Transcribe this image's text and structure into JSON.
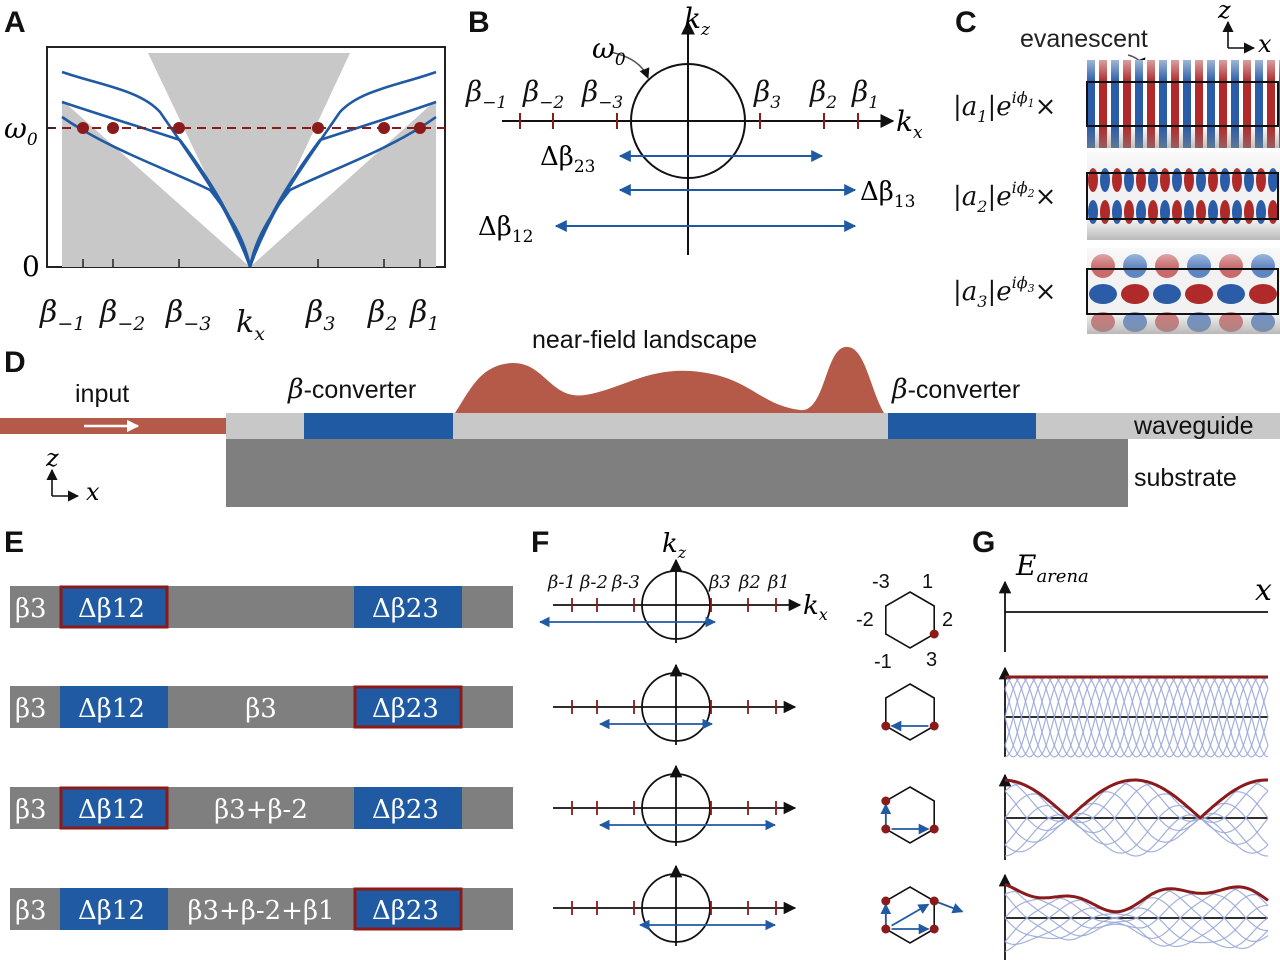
{
  "panels": {
    "a": "A",
    "b": "B",
    "c": "C",
    "d": "D",
    "e": "E",
    "f": "F",
    "g": "G"
  },
  "colors": {
    "blue": "#1f5aa3",
    "red": "#8b1a1a",
    "copper": "#b55a48",
    "grey": "#c8c8c8",
    "dark": "#7f7f7f",
    "wave": "#9aa9d8"
  },
  "panel_a": {
    "y_ticks": [
      "ω",
      "0",
      "0"
    ],
    "x_ticks": [
      {
        "base": "β",
        "sub": "−1"
      },
      {
        "base": "β",
        "sub": "−2"
      },
      {
        "base": "β",
        "sub": "−3"
      },
      {
        "base": "k",
        "sub": "x"
      },
      {
        "base": "β",
        "sub": "3"
      },
      {
        "base": "β",
        "sub": "2"
      },
      {
        "base": "β",
        "sub": "1"
      }
    ]
  },
  "panel_b": {
    "omega": "ω",
    "omega_sub": "0",
    "kz": "k",
    "kz_sub": "z",
    "kx": "k",
    "kx_sub": "x",
    "left_labels": [
      {
        "base": "β",
        "sub": "−1"
      },
      {
        "base": "β",
        "sub": "−2"
      },
      {
        "base": "β",
        "sub": "−3"
      }
    ],
    "right_labels": [
      {
        "base": "β",
        "sub": "3"
      },
      {
        "base": "β",
        "sub": "2"
      },
      {
        "base": "β",
        "sub": "1"
      }
    ],
    "arrows": [
      {
        "base": "Δβ",
        "sub": "23"
      },
      {
        "base": "Δβ",
        "sub": "13"
      },
      {
        "base": "Δβ",
        "sub": "12"
      }
    ]
  },
  "panel_c": {
    "evanescent": "evanescent",
    "z": "z",
    "x": "x",
    "modes": [
      {
        "mag": "|a",
        "i": "1",
        "mid": "|e",
        "ph": "iϕ",
        "phs": "1",
        "times": "×"
      },
      {
        "mag": "|a",
        "i": "2",
        "mid": "|e",
        "ph": "iϕ",
        "phs": "2",
        "times": "×"
      },
      {
        "mag": "|a",
        "i": "3",
        "mid": "|e",
        "ph": "iϕ",
        "phs": "3",
        "times": "×"
      }
    ]
  },
  "panel_d": {
    "input": "input",
    "near_field": "near-field landscape",
    "beta": "β",
    "converter": "-converter",
    "waveguide": "waveguide",
    "substrate": "substrate",
    "z": "z",
    "x": "x"
  },
  "panel_e": {
    "rows": [
      {
        "a": "β3",
        "b": "Δβ12",
        "c": "",
        "d": "Δβ23"
      },
      {
        "a": "β3",
        "b": "Δβ12",
        "c": "β3",
        "d": "Δβ23"
      },
      {
        "a": "β3",
        "b": "Δβ12",
        "c": "β3+β-2",
        "d": "Δβ23"
      },
      {
        "a": "β3",
        "b": "Δβ12",
        "c": "β3+β-2+β1",
        "d": "Δβ23"
      }
    ]
  },
  "panel_f": {
    "kz": "k",
    "kz_sub": "z",
    "kx": "k",
    "kx_sub": "x",
    "left_labels": [
      "β-1",
      "β-2",
      "β-3"
    ],
    "right_labels": [
      "β3",
      "β2",
      "β1"
    ],
    "hex_labels": [
      "-3",
      "1",
      "-2",
      "2",
      "-1",
      "3"
    ]
  },
  "panel_g": {
    "e": "E",
    "e_sub": "arena",
    "x": "x"
  }
}
